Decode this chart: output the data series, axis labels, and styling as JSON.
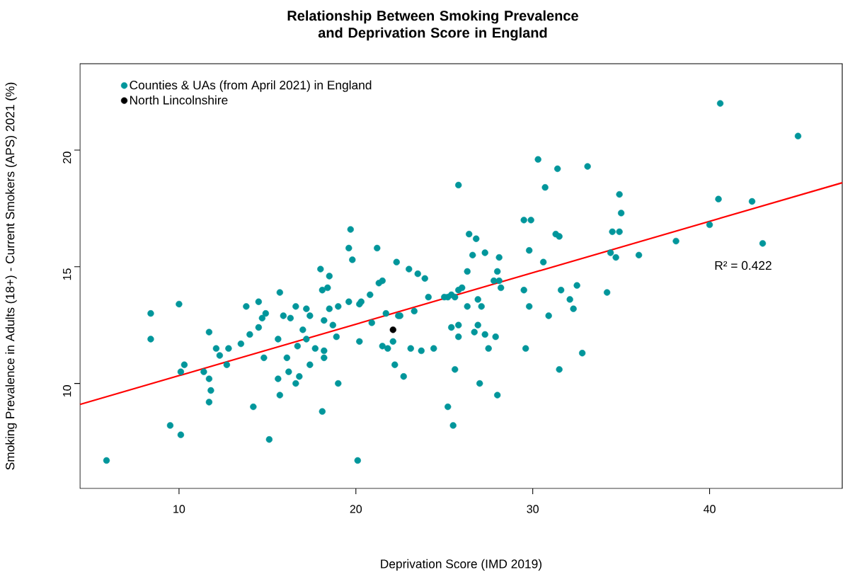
{
  "chart_data": {
    "type": "scatter",
    "title": "Relationship Between Smoking Prevalence and Deprivation Score in England",
    "xlabel": "Deprivation Score (IMD 2019)",
    "ylabel": "Smoking Prevalence in Adults (18+) - Current Smokers (APS) 2021 (%)",
    "xlim": [
      4.4,
      47.5
    ],
    "ylim": [
      5.5,
      23.7
    ],
    "xticks": [
      10,
      20,
      30,
      40
    ],
    "yticks": [
      10,
      15,
      20
    ],
    "marker": "circle",
    "legend": "top left",
    "annotations": [
      "R² = 0.422"
    ],
    "series": [
      {
        "name": "Counties & UAs (from April 2021) in England",
        "color": "#00969b",
        "x": [
          5.9,
          8.4,
          8.4,
          10.0,
          9.5,
          10.1,
          10.3,
          10.1,
          11.7,
          11.4,
          11.7,
          11.8,
          11.7,
          12.1,
          12.3,
          12.8,
          12.7,
          13.5,
          13.8,
          14.5,
          14.0,
          14.5,
          14.7,
          14.9,
          14.2,
          14.8,
          15.1,
          15.7,
          15.9,
          16.3,
          15.6,
          16.1,
          16.2,
          15.6,
          15.7,
          16.6,
          17.0,
          17.2,
          17.4,
          16.7,
          17.2,
          16.8,
          16.6,
          17.4,
          17.7,
          18.2,
          18.2,
          18.0,
          18.5,
          18.1,
          18.4,
          18.5,
          18.2,
          18.7,
          19.0,
          18.9,
          19.0,
          18.1,
          19.6,
          19.7,
          19.6,
          19.8,
          20.2,
          20.2,
          20.1,
          21.2,
          22.3,
          23.0,
          23.5,
          23.9,
          21.3,
          21.5,
          20.8,
          20.3,
          20.9,
          21.7,
          22.4,
          22.5,
          23.3,
          24.1,
          25.0,
          25.2,
          25.4,
          25.6,
          25.8,
          26.0,
          25.8,
          26.4,
          26.8,
          26.6,
          27.3,
          28.1,
          26.3,
          28.0,
          27.8,
          28.1,
          28.2,
          26.9,
          27.1,
          26.3,
          25.4,
          25.8,
          25.8,
          26.7,
          26.9,
          27.3,
          27.9,
          27.5,
          21.5,
          21.8,
          22.1,
          23.1,
          23.7,
          24.4,
          22.2,
          22.7,
          25.6,
          27.0,
          28.0,
          25.2,
          25.5,
          30.3,
          31.4,
          33.1,
          30.7,
          29.5,
          29.9,
          31.3,
          31.5,
          29.8,
          30.6,
          29.5,
          29.8,
          31.6,
          32.5,
          32.1,
          32.3,
          30.9,
          29.6,
          32.8,
          31.5,
          40.6,
          45.0,
          34.9,
          35.0,
          34.5,
          34.9,
          40.5,
          42.4,
          40.0,
          38.1,
          43.0,
          34.4,
          34.7,
          36.0,
          34.2
        ],
        "values": [
          6.7,
          13.0,
          11.9,
          13.4,
          8.2,
          7.8,
          10.8,
          10.5,
          12.2,
          10.5,
          10.2,
          9.7,
          9.2,
          11.5,
          11.2,
          11.5,
          10.8,
          11.7,
          13.3,
          13.5,
          12.1,
          12.4,
          12.8,
          13.0,
          9.0,
          11.1,
          7.6,
          13.9,
          12.9,
          12.8,
          11.9,
          11.1,
          10.5,
          10.2,
          9.5,
          13.3,
          12.3,
          13.2,
          12.9,
          11.6,
          11.9,
          10.3,
          10.0,
          10.8,
          11.5,
          11.4,
          11.1,
          14.9,
          14.6,
          14.0,
          14.1,
          13.2,
          12.7,
          12.5,
          13.3,
          12.0,
          10.0,
          8.8,
          13.5,
          16.6,
          15.8,
          15.3,
          13.4,
          11.8,
          6.7,
          15.8,
          15.2,
          14.9,
          14.7,
          14.5,
          14.3,
          14.4,
          13.8,
          13.5,
          12.6,
          13.0,
          12.9,
          12.9,
          13.1,
          13.7,
          13.7,
          13.7,
          13.8,
          13.7,
          14.0,
          14.1,
          18.5,
          16.4,
          16.2,
          15.5,
          15.6,
          15.4,
          14.8,
          14.8,
          14.4,
          14.4,
          14.1,
          13.6,
          13.3,
          13.3,
          12.4,
          12.5,
          12.0,
          12.2,
          12.5,
          12.1,
          12.0,
          11.5,
          11.6,
          11.5,
          11.8,
          11.5,
          11.4,
          11.5,
          10.8,
          10.3,
          10.6,
          10.0,
          9.5,
          9.0,
          8.2,
          19.6,
          19.2,
          19.3,
          18.4,
          17.0,
          17.0,
          16.4,
          16.3,
          15.7,
          15.2,
          14.0,
          13.3,
          14.0,
          14.2,
          13.6,
          13.2,
          12.9,
          11.5,
          11.3,
          10.6,
          22.0,
          20.6,
          18.1,
          17.3,
          16.5,
          16.5,
          17.9,
          17.8,
          16.8,
          16.1,
          16.0,
          15.6,
          15.4,
          15.5,
          13.9
        ]
      },
      {
        "name": "North Lincolnshire",
        "color": "#000000",
        "x": [
          22.1
        ],
        "values": [
          12.3
        ]
      },
      {
        "type": "line",
        "marker": "none",
        "color": "#ff0000",
        "x": [
          4.4,
          47.5
        ],
        "values": [
          9.1,
          18.6
        ]
      }
    ]
  }
}
